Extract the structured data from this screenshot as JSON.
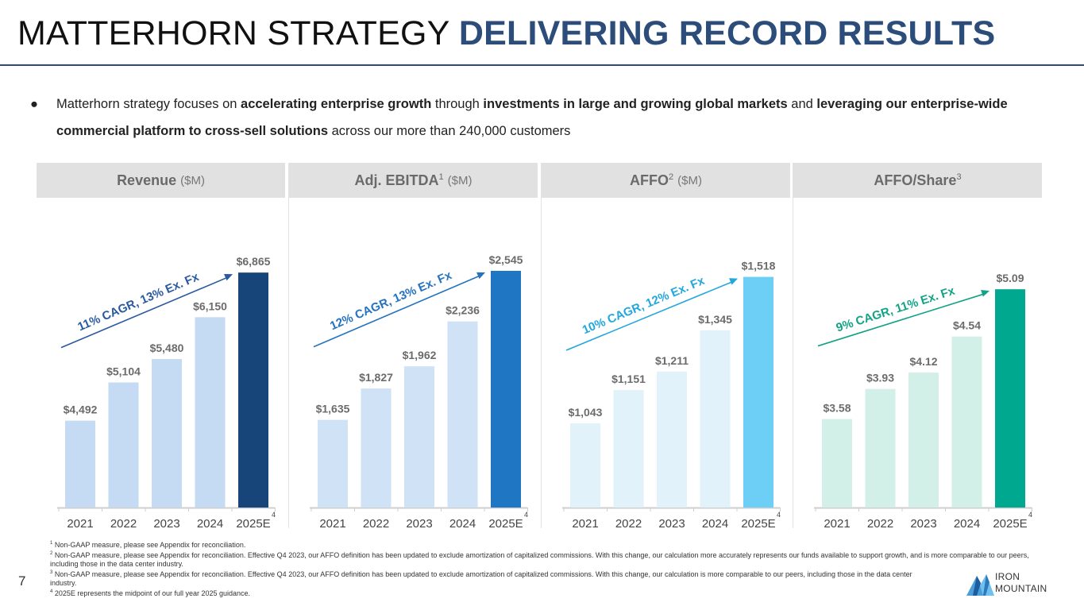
{
  "header": {
    "title_plain": "MATTERHORN STRATEGY",
    "title_highlight": "DELIVERING RECORD RESULTS"
  },
  "bullet": {
    "marker": "●",
    "parts": [
      {
        "text": "Matterhorn strategy focuses on ",
        "bold": false
      },
      {
        "text": "accelerating enterprise growth",
        "bold": true
      },
      {
        "text": " through ",
        "bold": false
      },
      {
        "text": "investments in large and growing global markets",
        "bold": true
      },
      {
        "text": " and ",
        "bold": false
      },
      {
        "text": "leveraging our enterprise-wide commercial platform to cross-sell solutions",
        "bold": true
      },
      {
        "text": " across our more than 240,000 customers",
        "bold": false
      }
    ]
  },
  "colors": {
    "title_accent": "#2c4d7a",
    "revenue_light": "#c5daf3",
    "revenue_dark": "#174479",
    "revenue_cagr": "#2a5aa0",
    "ebitda_light": "#cfe2f6",
    "ebitda_dark": "#1f77c4",
    "ebitda_cagr": "#2572bf",
    "affo_light": "#e2f2fb",
    "affo_dark": "#6ecff6",
    "affo_cagr": "#22a7dd",
    "share_light": "#d2efe8",
    "share_dark": "#00a88f",
    "share_cagr": "#12a285"
  },
  "chart_data": [
    {
      "type": "bar",
      "title": "Revenue",
      "title_unit": "($M)",
      "title_sup": "",
      "categories": [
        "2021",
        "2022",
        "2023",
        "2024",
        "2025E"
      ],
      "category_sup": "4",
      "values": [
        4492,
        5104,
        5480,
        6150,
        6865
      ],
      "labels": [
        "$4,492",
        "$5,104",
        "$5,480",
        "$6,150",
        "$6,865"
      ],
      "ylim": [
        3100,
        7300
      ],
      "annotation": "11% CAGR, 13% Ex. Fx",
      "light_color": "#c5daf3",
      "dark_color": "#174479",
      "arrow_color": "#2a5aa0"
    },
    {
      "type": "bar",
      "title": "Adj. EBITDA",
      "title_unit": "($M)",
      "title_sup": "1",
      "categories": [
        "2021",
        "2022",
        "2023",
        "2024",
        "2025E"
      ],
      "category_sup": "4",
      "values": [
        1635,
        1827,
        1962,
        2236,
        2545
      ],
      "labels": [
        "$1,635",
        "$1,827",
        "$1,962",
        "$2,236",
        "$2,545"
      ],
      "ylim": [
        1100,
        2700
      ],
      "annotation": "12% CAGR, 13% Ex. Fx",
      "light_color": "#cfe2f6",
      "dark_color": "#1f77c4",
      "arrow_color": "#2572bf"
    },
    {
      "type": "bar",
      "title": "AFFO",
      "title_unit": "($M)",
      "title_sup": "2",
      "categories": [
        "2021",
        "2022",
        "2023",
        "2024",
        "2025E"
      ],
      "category_sup": "4",
      "values": [
        1043,
        1151,
        1211,
        1345,
        1518
      ],
      "labels": [
        "$1,043",
        "$1,151",
        "$1,211",
        "$1,345",
        "$1,518"
      ],
      "ylim": [
        770,
        1620
      ],
      "annotation": "10% CAGR, 12% Ex. Fx",
      "light_color": "#e2f2fb",
      "dark_color": "#6ecff6",
      "arrow_color": "#22a7dd"
    },
    {
      "type": "bar",
      "title": "AFFO/Share",
      "title_unit": "",
      "title_sup": "3",
      "categories": [
        "2021",
        "2022",
        "2023",
        "2024",
        "2025E"
      ],
      "category_sup": "4",
      "values": [
        3.58,
        3.93,
        4.12,
        4.54,
        5.09
      ],
      "labels": [
        "$3.58",
        "$3.93",
        "$4.12",
        "$4.54",
        "$5.09"
      ],
      "ylim": [
        2.55,
        5.6
      ],
      "annotation": "9% CAGR, 11% Ex. Fx",
      "light_color": "#d2efe8",
      "dark_color": "#00a88f",
      "arrow_color": "#12a285"
    }
  ],
  "footnotes": [
    {
      "sup": "1",
      "text": "Non-GAAP measure, please see Appendix for reconciliation."
    },
    {
      "sup": "2",
      "text": "Non-GAAP measure, please see Appendix for reconciliation. Effective Q4 2023, our AFFO definition has been updated to exclude amortization of capitalized commissions. With this change, our calculation more accurately represents our funds available to support growth, and is more comparable to our peers, including those in the data center industry."
    },
    {
      "sup": "3",
      "text": "Non-GAAP measure, please see Appendix for reconciliation. Effective Q4 2023, our AFFO definition has been updated to exclude amortization of capitalized commissions. With this change, our calculation is more comparable to our peers, including those in the data center industry."
    },
    {
      "sup": "4",
      "text": "2025E represents the midpoint of our full year 2025 guidance."
    }
  ],
  "page": {
    "number": "7"
  },
  "logo": {
    "line1": "IRON",
    "line2": "MOUNTAIN"
  }
}
